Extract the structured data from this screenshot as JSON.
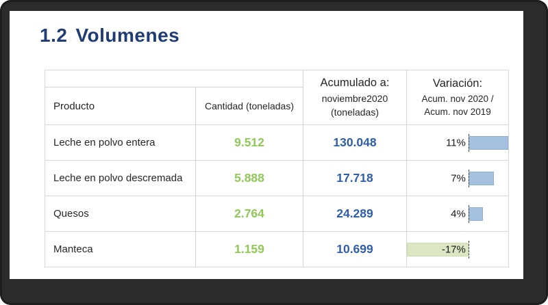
{
  "page": {
    "title_number": "1.2",
    "title_text": "Volumenes"
  },
  "table": {
    "headers": {
      "producto": "Producto",
      "cantidad_line1": "Cantidad",
      "cantidad_line2": "(toneladas)",
      "acumulado_line1": "Acumulado a:",
      "acumulado_line2": "noviembre2020",
      "acumulado_line3": "(toneladas)",
      "variacion_line1": "Variación:",
      "variacion_line2": "Acum. nov 2020 /",
      "variacion_line3": "Acum. nov 2019"
    },
    "rows": [
      {
        "producto": "Leche en polvo entera",
        "cantidad": "9.512",
        "acumulado": "130.048",
        "variacion_label": "11%",
        "variacion_value": 11
      },
      {
        "producto": "Leche en polvo descremada",
        "cantidad": "5.888",
        "acumulado": "17.718",
        "variacion_label": "7%",
        "variacion_value": 7
      },
      {
        "producto": "Quesos",
        "cantidad": "2.764",
        "acumulado": "24.289",
        "variacion_label": "4%",
        "variacion_value": 4
      },
      {
        "producto": "Manteca",
        "cantidad": "1.159",
        "acumulado": "10.699",
        "variacion_label": "-17%",
        "variacion_value": -17
      }
    ],
    "databar": {
      "min": -17,
      "max": 11,
      "positive_color": "#a5c1e0",
      "positive_border": "#8fb0d5",
      "negative_color": "#dce6c3",
      "negative_border": "#cddcab"
    }
  },
  "colors": {
    "title": "#1f3c73",
    "cantidad_value": "#90c858",
    "acumulado_value": "#2f5da8",
    "table_border": "#d6d6d6",
    "frame": "#2b2b2b"
  }
}
